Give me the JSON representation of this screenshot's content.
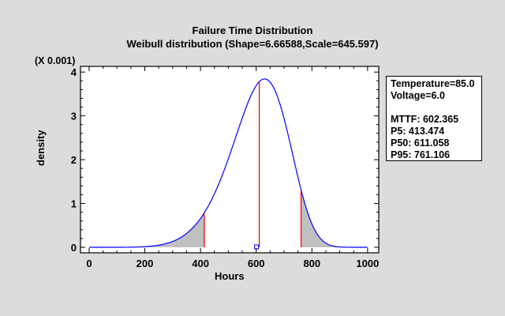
{
  "chart_data": {
    "type": "line",
    "title": "Failure Time Distribution",
    "subtitle": "Weibull distribution (Shape=6.66588,Scale=645.597)",
    "xlabel": "Hours",
    "ylabel": "density",
    "y_multiplier_label": "(X 0.001)",
    "xlim": [
      -31,
      1040
    ],
    "ylim": [
      -0.126,
      4.13
    ],
    "x_ticks": [
      0,
      200,
      400,
      600,
      800,
      1000
    ],
    "y_ticks": [
      0,
      1,
      2,
      3,
      4
    ],
    "distribution": {
      "name": "Weibull",
      "shape": 6.66588,
      "scale": 645.597,
      "x_range": [
        0,
        1000
      ]
    },
    "percentile_lines": {
      "P5": 413.474,
      "P50": 611.058,
      "P95": 761.106
    },
    "mttf_marker": 602.365,
    "colors": {
      "curve": "#0000ff",
      "lines": "#ff0000",
      "shade": "#c0c0c0"
    }
  },
  "legend": {
    "lines": [
      "Temperature=85.0",
      "Voltage=6.0",
      "",
      "MTTF: 602.365",
      "P5: 413.474",
      "P50: 611.058",
      "P95: 761.106"
    ]
  }
}
